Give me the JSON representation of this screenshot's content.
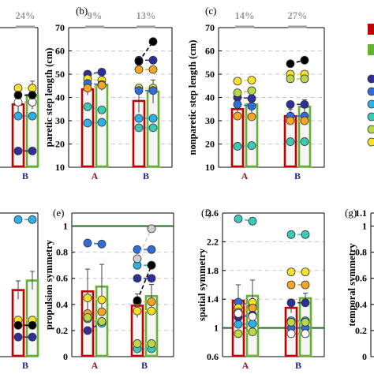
{
  "colors": {
    "bar_a": "#c00000",
    "bar_b": "#66b032",
    "err": "#444444",
    "pct": "#9a9a9a",
    "ref_line": "#1e6b1e",
    "cat_a": "#8b1a1a",
    "cat_b": "#1f2a80"
  },
  "legend_colors": [
    "#c00000",
    "#66b032",
    "#2d2f9a",
    "#2e6ed8",
    "#2eb0e8",
    "#3cc9b8",
    "#b8d84a",
    "#f4e12a"
  ],
  "chart_data": [
    {
      "type": "bar",
      "panel_label": "",
      "ylabel": "",
      "ylim": [
        10,
        70
      ],
      "yticks": [],
      "categories": [
        "",
        "B"
      ],
      "bar_values": [
        29,
        37
      ],
      "errors": [
        2,
        6
      ],
      "percentages": [
        "",
        "24%"
      ],
      "ref_line": null,
      "points": [
        {
          "color": "#f4e12a",
          "a": 33,
          "b": 44
        },
        {
          "color": "#ffffff",
          "a": 31,
          "b": 38
        },
        {
          "color": "#2eb0e8",
          "a": 28,
          "b": 32
        },
        {
          "color": "#2d2f9a",
          "a": 17,
          "b": 17
        },
        {
          "color": "#000000",
          "a": 41,
          "b": 41
        }
      ]
    },
    {
      "type": "bar",
      "panel_label": "(b)",
      "ylabel": "paretic step length (cm)",
      "ylim": [
        10,
        70
      ],
      "yticks": [
        10,
        20,
        30,
        40,
        50,
        60,
        70
      ],
      "categories": [
        "A",
        "B"
      ],
      "bar_values": [
        43.5,
        38.5
      ],
      "errors": [
        2.5,
        5
      ],
      "percentages": [
        "9%",
        "13%"
      ],
      "ref_line": null,
      "points": [
        {
          "color": "#2d2f9a",
          "a": 50,
          "b": 56
        },
        {
          "color": "#f4e12a",
          "a": 48,
          "b": 44
        },
        {
          "color": "#2e6ed8",
          "a": 46,
          "b": 43
        },
        {
          "color": "#f5a623",
          "a": 44,
          "b": 52
        },
        {
          "color": "#3cc9b8",
          "a": 36,
          "b": 27
        },
        {
          "color": "#2eb0e8",
          "a": 29,
          "b": 31
        },
        {
          "color": "#000000",
          "a": null,
          "b": 55.5,
          "b2": 64
        }
      ]
    },
    {
      "type": "bar",
      "panel_label": "(c)",
      "ylabel": "nonparetic step length (cm)",
      "ylim": [
        10,
        70
      ],
      "yticks": [
        10,
        20,
        30,
        40,
        50,
        60,
        70
      ],
      "categories": [
        "A",
        "B"
      ],
      "bar_values": [
        35,
        32
      ],
      "errors": [
        4,
        3
      ],
      "percentages": [
        "14%",
        "27%"
      ],
      "ref_line": null,
      "points": [
        {
          "color": "#f4e12a",
          "a": 47,
          "b": 50
        },
        {
          "color": "#2d2f9a",
          "a": 40,
          "b": 37
        },
        {
          "color": "#2e6ed8",
          "a": 37,
          "b": 32
        },
        {
          "color": "#f5a623",
          "a": 32,
          "b": 30
        },
        {
          "color": "#3cc9b8",
          "a": 19,
          "b": 21
        },
        {
          "color": "#b8d84a",
          "a": 42,
          "b": 48
        },
        {
          "color": "#000000",
          "a": null,
          "b": 54.5,
          "b2": 56
        }
      ]
    },
    {
      "type": "bar",
      "panel_label": "",
      "ylabel": "",
      "ylim": [
        0,
        1.1
      ],
      "yticks": [],
      "categories": [
        "",
        "B"
      ],
      "bar_values": [
        0.35,
        0.51
      ],
      "errors": [
        0.06,
        0.07
      ],
      "percentages": [
        "",
        ""
      ],
      "ref_line": null,
      "points": [
        {
          "color": "#2eb0e8",
          "a": 0.6,
          "b": 1.05
        },
        {
          "color": "#f4e12a",
          "a": 0.2,
          "b": 0.28
        },
        {
          "color": "#000000",
          "a": 0.2,
          "b": 0.24
        },
        {
          "color": "#2d2f9a",
          "a": 0.05,
          "b": 0.15
        }
      ]
    },
    {
      "type": "bar",
      "panel_label": "(e)",
      "ylabel": "propulsion symmetry",
      "ylim": [
        0,
        1.1
      ],
      "yticks": [
        0,
        0.2,
        0.4,
        0.6,
        0.8,
        1
      ],
      "categories": [
        "A",
        "B"
      ],
      "bar_values": [
        0.5,
        0.39
      ],
      "errors": [
        0.17,
        0.09
      ],
      "percentages": [
        "",
        ""
      ],
      "ref_line": 1,
      "points": [
        {
          "color": "#2eb0e8",
          "a": 1.12,
          "b": 0.7
        },
        {
          "color": "#2e6ed8",
          "a": 0.87,
          "b": 0.82
        },
        {
          "color": "#2d2f9a",
          "a": 0.2,
          "b": 0.6
        },
        {
          "color": "#f4e12a",
          "a": 0.45,
          "b": 0.35
        },
        {
          "color": "#3cc9b8",
          "a": 0.29,
          "b": 0.06
        },
        {
          "color": "#f5a623",
          "a": 0.33,
          "b": 0.42
        },
        {
          "color": "#b8d84a",
          "a": 0.3,
          "b": 0.1
        },
        {
          "color": "#000000",
          "a": null,
          "b": 0.43,
          "b2": 0.7
        },
        {
          "color": "#cfcfcf",
          "a": null,
          "b": 0.75,
          "b2": 0.98
        }
      ]
    },
    {
      "type": "bar",
      "panel_label": "(f)",
      "ylabel": "spatial symmetry",
      "ylim": [
        0.6,
        2.6
      ],
      "yticks": [
        0.6,
        1,
        1.4,
        1.8,
        2.2,
        2.6
      ],
      "categories": [
        "A",
        "B"
      ],
      "bar_values": [
        1.38,
        1.28
      ],
      "errors": [
        0.22,
        0.07
      ],
      "percentages": [
        "",
        ""
      ],
      "ref_line": 1,
      "points": [
        {
          "color": "#3cc9b8",
          "a": 2.52,
          "b": 2.3
        },
        {
          "color": "#2e6ed8",
          "a": 1.36,
          "b": 1.0
        },
        {
          "color": "#f4e12a",
          "a": 1.28,
          "b": 1.78
        },
        {
          "color": "#f5a623",
          "a": 1.22,
          "b": 1.6
        },
        {
          "color": "#2eb0e8",
          "a": 1.05,
          "b": 1.1
        },
        {
          "color": "#2d2f9a",
          "a": 1.15,
          "b": 1.35
        },
        {
          "color": "#ffffff",
          "a": 1.2,
          "b": 0.92
        },
        {
          "color": "#b8d84a",
          "a": 0.92,
          "b": 1.08
        }
      ]
    },
    {
      "type": "bar",
      "panel_label": "(g)",
      "ylabel": "temporal symmetry",
      "ylim": [
        0,
        1.1
      ],
      "yticks": [
        0,
        0.2,
        0.4,
        0.6,
        0.8,
        1,
        1.1
      ],
      "categories": [],
      "bar_values": [],
      "errors": [],
      "percentages": [],
      "ref_line": null,
      "points": []
    }
  ]
}
